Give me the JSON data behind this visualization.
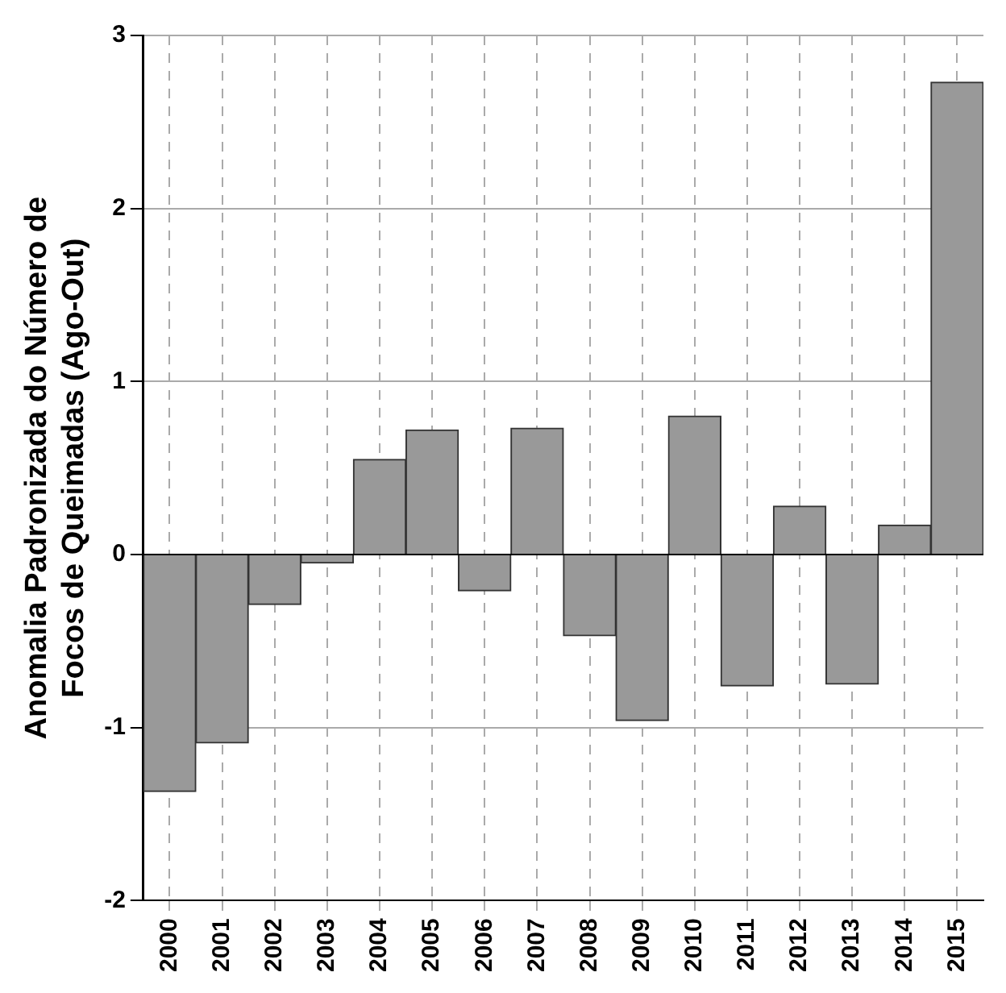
{
  "chart_data": {
    "type": "bar",
    "ylabel": "Anomalia Padronizada do Número de\nFocos de Queimadas (Ago-Out)",
    "categories": [
      "2000",
      "2001",
      "2002",
      "2003",
      "2004",
      "2005",
      "2006",
      "2007",
      "2008",
      "2009",
      "2010",
      "2011",
      "2012",
      "2013",
      "2014",
      "2015"
    ],
    "values": [
      -1.37,
      -1.09,
      -0.29,
      -0.05,
      0.55,
      0.72,
      -0.21,
      0.73,
      -0.47,
      -0.96,
      0.8,
      -0.76,
      0.28,
      -0.75,
      0.17,
      2.73
    ],
    "color": "#999999",
    "ylim": [
      -2,
      3
    ],
    "yticks": [
      -2,
      -1,
      0,
      1,
      2,
      3
    ],
    "grid": true,
    "line_style": "dashed"
  }
}
